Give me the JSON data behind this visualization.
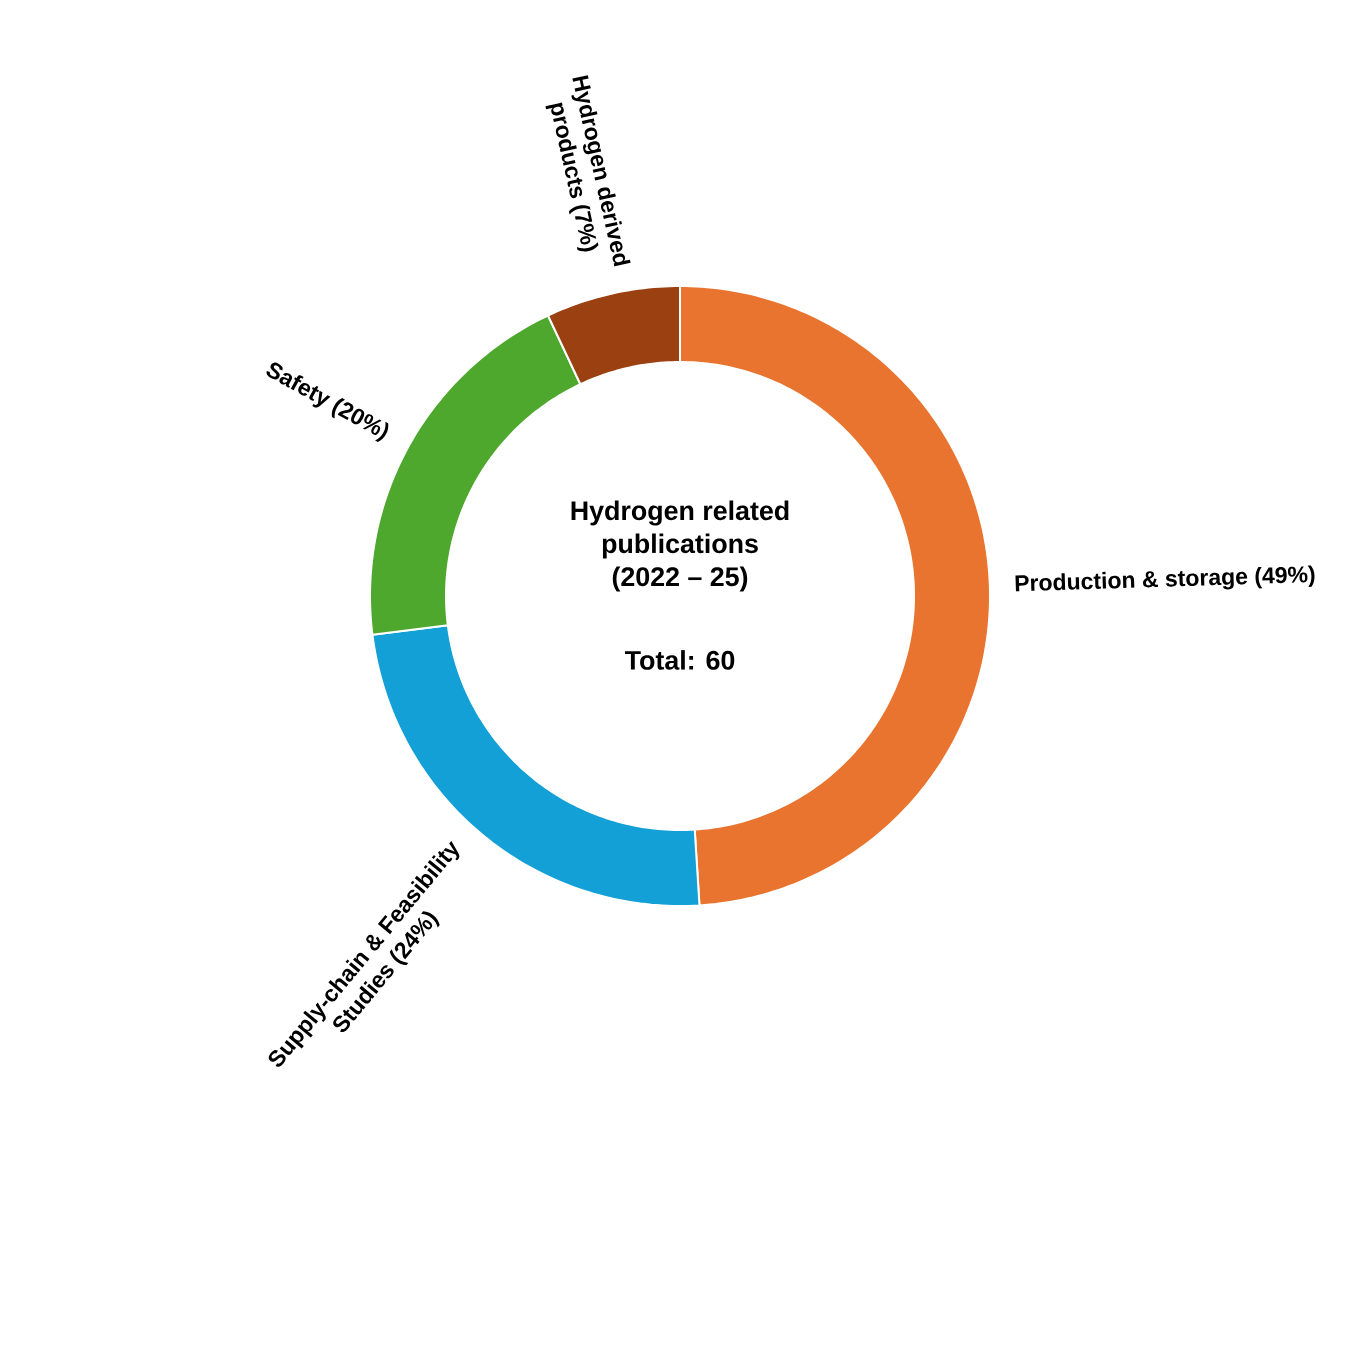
{
  "chart_data": {
    "type": "donut",
    "title": "Hydrogen related publications (2022 – 25)",
    "categories": [
      "Production & storage (49%)",
      "Supply-chain & Feasibility Studies (24%)",
      "Safety (20%)",
      "Hydrogen derived products (7%)"
    ],
    "values": [
      49,
      24,
      20,
      7
    ],
    "colors": [
      "#e8742f",
      "#12a0d7",
      "#4fa82e",
      "#9b4111"
    ],
    "annotations": [
      "Total: 60"
    ]
  }
}
